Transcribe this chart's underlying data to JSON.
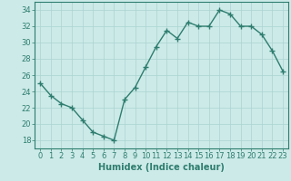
{
  "x": [
    0,
    1,
    2,
    3,
    4,
    5,
    6,
    7,
    8,
    9,
    10,
    11,
    12,
    13,
    14,
    15,
    16,
    17,
    18,
    19,
    20,
    21,
    22,
    23
  ],
  "y": [
    25.0,
    23.5,
    22.5,
    22.0,
    20.5,
    19.0,
    18.5,
    18.0,
    23.0,
    24.5,
    27.0,
    29.5,
    31.5,
    30.5,
    32.5,
    32.0,
    32.0,
    34.0,
    33.5,
    32.0,
    32.0,
    31.0,
    29.0,
    26.5
  ],
  "line_color": "#2e7d6e",
  "marker_color": "#2e7d6e",
  "bg_color": "#cceae8",
  "grid_color": "#aad4d0",
  "spine_color": "#2e7d6e",
  "xlabel": "Humidex (Indice chaleur)",
  "ylim": [
    17,
    35
  ],
  "yticks": [
    18,
    20,
    22,
    24,
    26,
    28,
    30,
    32,
    34
  ],
  "xticks": [
    0,
    1,
    2,
    3,
    4,
    5,
    6,
    7,
    8,
    9,
    10,
    11,
    12,
    13,
    14,
    15,
    16,
    17,
    18,
    19,
    20,
    21,
    22,
    23
  ],
  "xlabel_fontsize": 7.0,
  "tick_fontsize": 6.0,
  "linewidth": 1.0,
  "markersize": 2.5
}
